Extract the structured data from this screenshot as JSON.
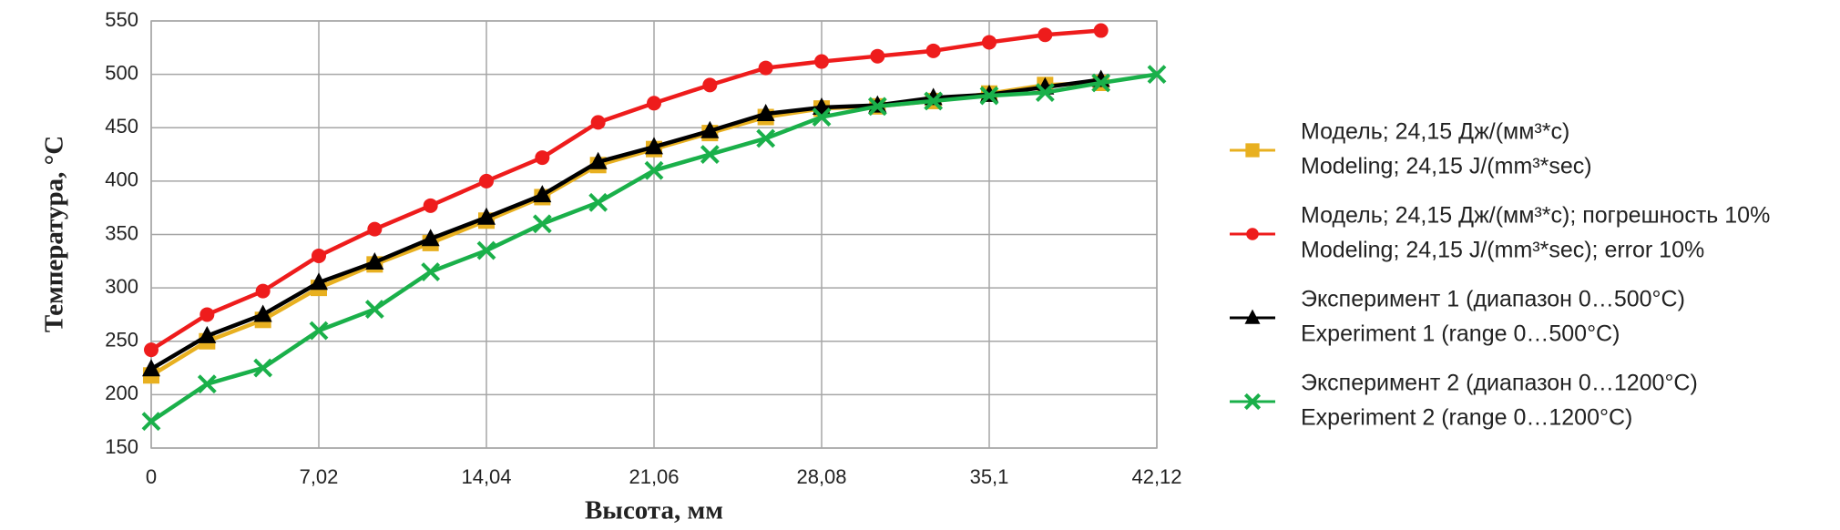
{
  "chart_data": {
    "type": "line",
    "xlabel": "Высота, мм",
    "ylabel": "Температура, °C",
    "xlim": [
      0,
      42.12
    ],
    "ylim": [
      150,
      550
    ],
    "xticks": [
      0,
      {
        "value": 7.02,
        "label": "7,02"
      },
      {
        "value": 14.04,
        "label": "14,04"
      },
      {
        "value": 21.06,
        "label": "21,06"
      },
      {
        "value": 28.08,
        "label": "28,08"
      },
      {
        "value": 35.1,
        "label": "35,1"
      },
      {
        "value": 42.12,
        "label": "42,12"
      }
    ],
    "yticks": [
      150,
      200,
      250,
      300,
      350,
      400,
      450,
      500,
      550
    ],
    "grid": true,
    "legend": "right",
    "series": [
      {
        "name": [
          "Модель; 24,15 Дж/(мм³*с)",
          "Modeling; 24,15 J/(mm³*sec)"
        ],
        "color": "#e8b020",
        "marker": "square",
        "x": [
          0,
          2.34,
          4.68,
          7.02,
          9.36,
          11.7,
          14.04,
          16.38,
          18.72,
          21.06,
          23.4,
          25.74,
          28.08,
          30.42,
          32.76,
          35.1,
          37.44,
          39.78
        ],
        "values": [
          218,
          250,
          270,
          300,
          322,
          342,
          363,
          385,
          415,
          430,
          445,
          460,
          468,
          470,
          475,
          482,
          490,
          492
        ]
      },
      {
        "name": [
          "Модель; 24,15 Дж/(мм³*с); погрешность 10%",
          "Modeling; 24,15 J/(mm³*sec); error 10%"
        ],
        "color": "#ee1c1c",
        "marker": "circle",
        "x": [
          0,
          2.34,
          4.68,
          7.02,
          9.36,
          11.7,
          14.04,
          16.38,
          18.72,
          21.06,
          23.4,
          25.74,
          28.08,
          30.42,
          32.76,
          35.1,
          37.44,
          39.78
        ],
        "values": [
          242,
          275,
          297,
          330,
          355,
          377,
          400,
          422,
          455,
          473,
          490,
          506,
          512,
          517,
          522,
          530,
          537,
          541
        ]
      },
      {
        "name": [
          "Эксперимент 1 (диапазон 0…500°C)",
          "Experiment 1 (range 0…500°C)"
        ],
        "color": "#000000",
        "marker": "triangle",
        "x": [
          0,
          2.34,
          4.68,
          7.02,
          9.36,
          11.7,
          14.04,
          16.38,
          18.72,
          21.06,
          23.4,
          25.74,
          28.08,
          30.42,
          32.76,
          35.1,
          37.44,
          39.78
        ],
        "values": [
          224,
          255,
          275,
          305,
          324,
          346,
          366,
          387,
          418,
          432,
          447,
          463,
          469,
          471,
          478,
          481,
          488,
          495
        ]
      },
      {
        "name": [
          "Эксперимент 2 (диапазон 0…1200°C)",
          "Experiment 2 (range 0…1200°C)"
        ],
        "color": "#1ab04a",
        "marker": "x",
        "x": [
          0,
          2.34,
          4.68,
          7.02,
          9.36,
          11.7,
          14.04,
          16.38,
          18.72,
          21.06,
          23.4,
          25.74,
          28.08,
          30.42,
          32.76,
          35.1,
          37.44,
          39.78,
          42.12
        ],
        "values": [
          175,
          210,
          225,
          260,
          280,
          315,
          335,
          360,
          380,
          410,
          425,
          440,
          460,
          470,
          475,
          480,
          483,
          492,
          500
        ]
      }
    ]
  }
}
